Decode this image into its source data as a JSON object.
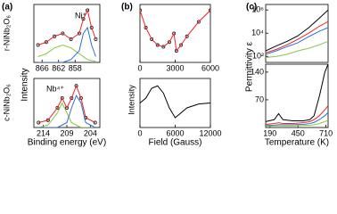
{
  "chart_data": [
    {
      "type": "line",
      "panel_label": "(a)",
      "ylabel": "r-NiNb₂O₆",
      "shared_ylabel": "Intensity",
      "annotation": "Ni⁺",
      "x": [
        867,
        865,
        863,
        861,
        859,
        857,
        856,
        855,
        854,
        853
      ],
      "xlim": [
        868,
        852
      ],
      "xticks": [
        866,
        862,
        858
      ],
      "ylim": [
        0,
        10
      ],
      "series": [
        {
          "color": "#000000",
          "mode": "markers",
          "values": [
            3,
            3.5,
            4.5,
            5,
            4,
            5,
            7.5,
            9,
            6,
            4
          ]
        },
        {
          "color": "#e8262b",
          "values": [
            3,
            3.5,
            4.5,
            5,
            4,
            5,
            7.5,
            9,
            6,
            4
          ]
        },
        {
          "color": "#8cc63f",
          "values": [
            1,
            1.5,
            2.5,
            3,
            2.5,
            1.5,
            1,
            0.5,
            0.3,
            0.2
          ]
        },
        {
          "color": "#2e6fd8",
          "values": [
            0,
            0,
            0,
            0,
            0.5,
            2,
            5,
            6,
            3,
            1
          ]
        }
      ]
    },
    {
      "type": "line",
      "ylabel": "c-NiNb₂O₆",
      "xlabel": "Binding energy (eV)",
      "annotation": "Nb⁴⁺",
      "x": [
        215,
        213,
        211,
        210,
        209,
        208,
        207,
        206,
        205,
        203
      ],
      "xlim": [
        216,
        202
      ],
      "xticks": [
        214,
        209,
        204
      ],
      "ylim": [
        0,
        10
      ],
      "series": [
        {
          "color": "#000000",
          "mode": "markers",
          "values": [
            1,
            1.5,
            4,
            6,
            4,
            6,
            8.5,
            6,
            2,
            1
          ]
        },
        {
          "color": "#e8262b",
          "values": [
            1,
            1.5,
            4,
            6,
            4,
            6,
            8.5,
            6,
            2,
            1
          ]
        },
        {
          "color": "#8cc63f",
          "values": [
            0,
            0.5,
            3,
            5,
            3,
            1,
            0.5,
            0,
            0,
            0
          ]
        },
        {
          "color": "#2e6fd8",
          "values": [
            0,
            0,
            0,
            0.5,
            1,
            4,
            6.5,
            5,
            1,
            0
          ]
        }
      ]
    },
    {
      "type": "line",
      "panel_label": "(b)",
      "x": [
        0,
        500,
        1000,
        1500,
        2000,
        2500,
        2900,
        3100,
        3500,
        4000,
        5000,
        6000
      ],
      "xlim": [
        0,
        6000
      ],
      "xticks": [
        0,
        3000,
        6000
      ],
      "ylim": [
        0,
        10
      ],
      "series": [
        {
          "color": "#000000",
          "mode": "markers",
          "values": [
            9,
            6,
            4,
            3,
            2.7,
            3.5,
            5,
            2,
            3,
            4.5,
            7,
            9
          ]
        },
        {
          "color": "#e8262b",
          "values": [
            9,
            6,
            4,
            3,
            2.7,
            3.5,
            5,
            2,
            3,
            4.5,
            7,
            9
          ]
        }
      ]
    },
    {
      "type": "line",
      "ylabel": "Intensity",
      "xlabel": "Field (Gauss)",
      "x": [
        0,
        1000,
        2000,
        3000,
        4000,
        5000,
        6000,
        7000,
        8000,
        10000,
        12000
      ],
      "xlim": [
        0,
        12000
      ],
      "xticks": [
        0,
        6000,
        12000
      ],
      "ylim": [
        0,
        10
      ],
      "series": [
        {
          "color": "#000000",
          "values": [
            5,
            6,
            8,
            8.5,
            7,
            4,
            2,
            3,
            4,
            4.8,
            5
          ]
        }
      ]
    },
    {
      "type": "line",
      "panel_label": "(c)",
      "shared_ylabel": "Permittivity ε",
      "yscale": "log",
      "x": [
        150,
        250,
        350,
        450,
        550,
        650,
        730
      ],
      "xlim": [
        150,
        730
      ],
      "ylim": [
        30,
        3000000
      ],
      "yticks": [
        {
          "value": 100,
          "label": "10²"
        },
        {
          "value": 10000,
          "label": "10⁴"
        },
        {
          "value": 1000000,
          "label": "10⁶"
        }
      ],
      "series": [
        {
          "color": "#000000",
          "values": [
            300,
            800,
            2000,
            6000,
            30000,
            200000,
            1000000
          ]
        },
        {
          "color": "#e8262b",
          "values": [
            200,
            400,
            1000,
            3000,
            10000,
            40000,
            100000
          ]
        },
        {
          "color": "#2e6fd8",
          "values": [
            150,
            300,
            700,
            1500,
            5000,
            15000,
            30000
          ]
        },
        {
          "color": "#8cc63f",
          "values": [
            80,
            100,
            150,
            300,
            500,
            1000,
            2000
          ]
        }
      ]
    },
    {
      "type": "line",
      "xlabel": "Temperature (K)",
      "x": [
        150,
        230,
        270,
        310,
        400,
        500,
        560,
        600,
        650,
        700,
        730
      ],
      "xlim": [
        150,
        730
      ],
      "xticks": [
        190,
        450,
        710
      ],
      "ylim": [
        0,
        160
      ],
      "yticks": [
        70,
        140
      ],
      "series": [
        {
          "color": "#000000",
          "values": [
            15,
            20,
            35,
            20,
            17,
            17,
            20,
            30,
            80,
            140,
            160
          ]
        },
        {
          "color": "#e8262b",
          "values": [
            8,
            10,
            12,
            10,
            10,
            12,
            15,
            20,
            30,
            45,
            55
          ]
        },
        {
          "color": "#2e6fd8",
          "values": [
            5,
            6,
            7,
            7,
            7,
            8,
            10,
            13,
            20,
            30,
            38
          ]
        },
        {
          "color": "#8cc63f",
          "values": [
            3,
            4,
            4,
            4,
            4,
            5,
            6,
            7,
            10,
            15,
            18
          ]
        }
      ]
    }
  ]
}
